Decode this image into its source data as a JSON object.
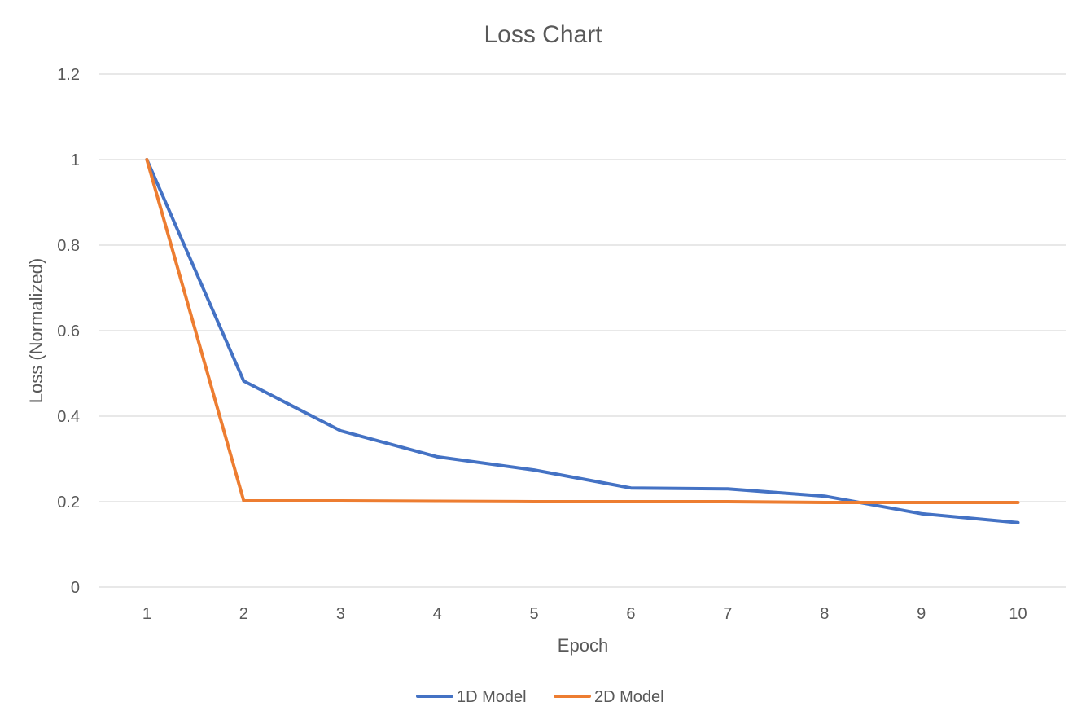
{
  "chart_data": {
    "type": "line",
    "title": "Loss Chart",
    "xlabel": "Epoch",
    "ylabel": "Loss (Normalized)",
    "categories": [
      "1",
      "2",
      "3",
      "4",
      "5",
      "6",
      "7",
      "8",
      "9",
      "10"
    ],
    "ylim": [
      0,
      1.2
    ],
    "yticks": [
      "0",
      "0.2",
      "0.4",
      "0.6",
      "0.8",
      "1",
      "1.2"
    ],
    "yticks_values": [
      0,
      0.2,
      0.4,
      0.6,
      0.8,
      1.0,
      1.2
    ],
    "grid": true,
    "legend_position": "bottom",
    "series": [
      {
        "name": "1D Model",
        "color": "#4472c4",
        "values": [
          1.0,
          0.482,
          0.366,
          0.305,
          0.274,
          0.232,
          0.23,
          0.213,
          0.172,
          0.151
        ]
      },
      {
        "name": "2D Model",
        "color": "#ed7d31",
        "values": [
          1.0,
          0.202,
          0.202,
          0.201,
          0.2,
          0.2,
          0.2,
          0.198,
          0.198,
          0.198
        ]
      }
    ]
  }
}
